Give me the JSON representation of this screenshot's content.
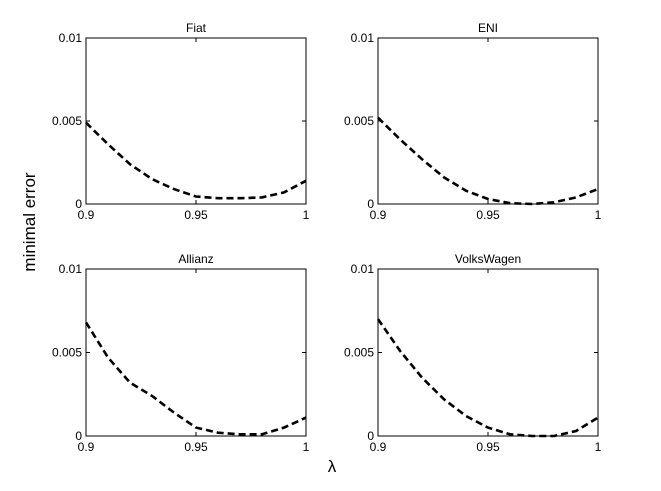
{
  "figure": {
    "ylabel": "minimal error",
    "xlabel": "λ"
  },
  "chart_data": [
    {
      "type": "line",
      "title": "Fiat",
      "xlim": [
        0.9,
        1
      ],
      "ylim": [
        0,
        0.01
      ],
      "xticks": [
        "0.9",
        "0.95",
        "1"
      ],
      "yticks": [
        "0",
        "0.005",
        "0.01"
      ],
      "grid": false,
      "line_style": "dashed",
      "x": [
        0.9,
        0.91,
        0.92,
        0.93,
        0.94,
        0.95,
        0.96,
        0.97,
        0.98,
        0.99,
        1.0
      ],
      "y": [
        0.0049,
        0.0036,
        0.0024,
        0.0015,
        0.0009,
        0.00045,
        0.00035,
        0.00035,
        0.0004,
        0.0007,
        0.0014
      ]
    },
    {
      "type": "line",
      "title": "ENI",
      "xlim": [
        0.9,
        1
      ],
      "ylim": [
        0,
        0.01
      ],
      "xticks": [
        "0.9",
        "0.95",
        "1"
      ],
      "yticks": [
        "0",
        "0.005",
        "0.01"
      ],
      "grid": false,
      "line_style": "dashed",
      "x": [
        0.9,
        0.91,
        0.92,
        0.93,
        0.94,
        0.95,
        0.96,
        0.97,
        0.98,
        0.99,
        1.0
      ],
      "y": [
        0.0052,
        0.0039,
        0.0027,
        0.0016,
        0.0008,
        0.0003,
        5e-05,
        0.0,
        0.0001,
        0.0004,
        0.0009
      ]
    },
    {
      "type": "line",
      "title": "Allianz",
      "xlim": [
        0.9,
        1
      ],
      "ylim": [
        0,
        0.01
      ],
      "xticks": [
        "0.9",
        "0.95",
        "1"
      ],
      "yticks": [
        "0",
        "0.005",
        "0.01"
      ],
      "grid": false,
      "line_style": "dashed",
      "x": [
        0.9,
        0.91,
        0.92,
        0.93,
        0.94,
        0.95,
        0.96,
        0.97,
        0.98,
        0.99,
        1.0
      ],
      "y": [
        0.0068,
        0.0047,
        0.0032,
        0.0024,
        0.0014,
        0.0005,
        0.0002,
        0.0001,
        0.0001,
        0.0005,
        0.0011
      ]
    },
    {
      "type": "line",
      "title": "VolksWagen",
      "xlim": [
        0.9,
        1
      ],
      "ylim": [
        0,
        0.01
      ],
      "xticks": [
        "0.9",
        "0.95",
        "1"
      ],
      "yticks": [
        "0",
        "0.005",
        "0.01"
      ],
      "grid": false,
      "line_style": "dashed",
      "x": [
        0.9,
        0.91,
        0.92,
        0.93,
        0.94,
        0.95,
        0.96,
        0.97,
        0.98,
        0.99,
        1.0
      ],
      "y": [
        0.007,
        0.0051,
        0.0035,
        0.0022,
        0.0012,
        0.0005,
        0.0001,
        0.0,
        0.0,
        0.0003,
        0.0011
      ]
    }
  ]
}
